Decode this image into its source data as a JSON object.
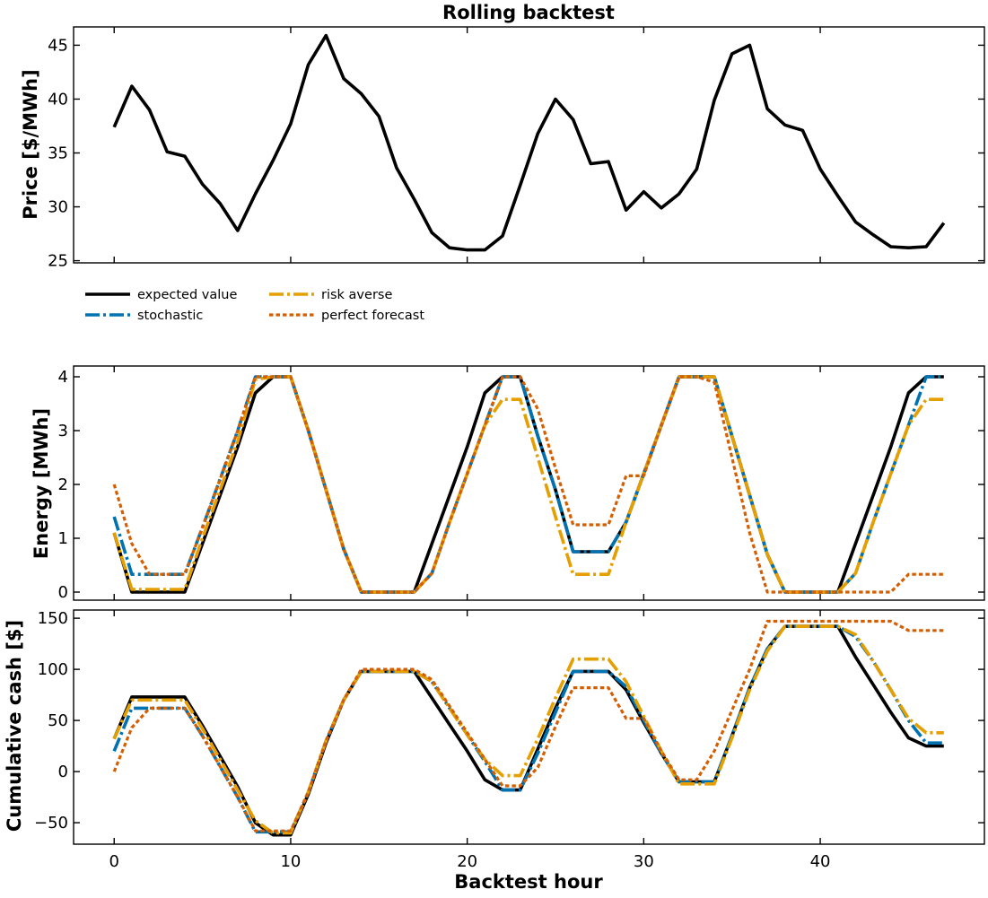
{
  "colors": {
    "expected_value": "#000000",
    "stochastic": "#0072b2",
    "risk_averse": "#e69f00",
    "perfect_forecast": "#d55e00"
  },
  "chart_data": [
    {
      "type": "line",
      "title": "Rolling backtest",
      "xlabel": "",
      "ylabel": "Price [$/MWh]",
      "xlim": [
        -2.3,
        49.3
      ],
      "ylim": [
        24.8,
        46.7
      ],
      "xticks": [
        0,
        10,
        20,
        30,
        40
      ],
      "yticks": [
        25,
        30,
        35,
        40,
        45
      ],
      "x": [
        0,
        1,
        2,
        3,
        4,
        5,
        6,
        7,
        8,
        9,
        10,
        11,
        12,
        13,
        14,
        15,
        16,
        17,
        18,
        19,
        20,
        21,
        22,
        23,
        24,
        25,
        26,
        27,
        28,
        29,
        30,
        31,
        32,
        33,
        34,
        35,
        36,
        37,
        38,
        39,
        40,
        41,
        42,
        43,
        44,
        45,
        46,
        47
      ],
      "series": [
        {
          "values": [
            37.4,
            41.2,
            39.0,
            35.1,
            34.7,
            32.1,
            30.3,
            27.8,
            31.2,
            34.3,
            37.7,
            43.2,
            45.9,
            41.9,
            40.5,
            38.4,
            33.6,
            30.7,
            27.6,
            26.2,
            26.0,
            26.0,
            27.3,
            32.0,
            36.8,
            40.0,
            38.1,
            34.0,
            34.2,
            29.7,
            31.4,
            29.9,
            31.2,
            33.5,
            39.9,
            44.2,
            45.0,
            39.1,
            37.6,
            37.1,
            33.5,
            31.0,
            28.6,
            27.4,
            26.3,
            26.2,
            26.3,
            28.5
          ],
          "color_key": "expected_value",
          "style": "solid"
        }
      ]
    },
    {
      "type": "line",
      "xlabel": "",
      "ylabel": "Energy [MWh]",
      "xlim": [
        -2.3,
        49.3
      ],
      "ylim": [
        -0.15,
        4.2
      ],
      "xticks": [
        0,
        10,
        20,
        30,
        40
      ],
      "yticks": [
        0,
        1,
        2,
        3,
        4
      ],
      "x": [
        0,
        1,
        2,
        3,
        4,
        5,
        6,
        7,
        8,
        9,
        10,
        11,
        12,
        13,
        14,
        15,
        16,
        17,
        18,
        19,
        20,
        21,
        22,
        23,
        24,
        25,
        26,
        27,
        28,
        29,
        30,
        31,
        32,
        33,
        34,
        35,
        36,
        37,
        38,
        39,
        40,
        41,
        42,
        43,
        44,
        45,
        46,
        47
      ],
      "legend": {
        "placement": "upper-left-outside",
        "entries": [
          {
            "label": "expected value",
            "color_key": "expected_value",
            "style": "solid"
          },
          {
            "label": "stochastic",
            "color_key": "stochastic",
            "style": "dashdot"
          },
          {
            "label": "risk averse",
            "color_key": "risk_averse",
            "style": "dashdot"
          },
          {
            "label": "perfect forecast",
            "color_key": "perfect_forecast",
            "style": "dotted"
          }
        ]
      },
      "series": [
        {
          "name": "expected value",
          "color_key": "expected_value",
          "style": "solid",
          "values": [
            1.1,
            0.0,
            0.0,
            0.0,
            0.0,
            0.9,
            1.8,
            2.7,
            3.7,
            4.0,
            4.0,
            3.0,
            1.9,
            0.8,
            0.0,
            0.0,
            0.0,
            0.0,
            0.9,
            1.8,
            2.7,
            3.7,
            4.0,
            4.0,
            2.9,
            1.9,
            0.75,
            0.75,
            0.75,
            1.3,
            2.2,
            3.1,
            4.0,
            4.0,
            4.0,
            2.9,
            1.8,
            0.7,
            0.0,
            0.0,
            0.0,
            0.0,
            0.9,
            1.8,
            2.7,
            3.7,
            4.0,
            4.0
          ]
        },
        {
          "name": "stochastic",
          "color_key": "stochastic",
          "style": "dashdot",
          "values": [
            1.4,
            0.33,
            0.33,
            0.33,
            0.33,
            1.2,
            2.1,
            3.0,
            4.0,
            4.0,
            4.0,
            3.0,
            1.9,
            0.8,
            0.0,
            0.0,
            0.0,
            0.0,
            0.35,
            1.3,
            2.2,
            3.1,
            4.0,
            4.0,
            2.9,
            1.9,
            0.75,
            0.75,
            0.75,
            1.3,
            2.2,
            3.1,
            4.0,
            4.0,
            4.0,
            2.9,
            1.8,
            0.7,
            0.0,
            0.0,
            0.0,
            0.0,
            0.35,
            1.3,
            2.2,
            3.1,
            4.0,
            4.0
          ]
        },
        {
          "name": "risk averse",
          "color_key": "risk_averse",
          "style": "dashdot",
          "values": [
            1.1,
            0.05,
            0.05,
            0.05,
            0.05,
            1.0,
            1.9,
            2.8,
            3.95,
            4.0,
            4.0,
            3.0,
            1.9,
            0.8,
            0.0,
            0.0,
            0.0,
            0.0,
            0.35,
            1.3,
            2.2,
            3.1,
            3.58,
            3.58,
            2.5,
            1.4,
            0.33,
            0.33,
            0.33,
            1.3,
            2.2,
            3.1,
            4.0,
            4.0,
            4.0,
            2.9,
            1.8,
            0.7,
            0.0,
            0.0,
            0.0,
            0.0,
            0.35,
            1.3,
            2.2,
            3.1,
            3.58,
            3.58
          ]
        },
        {
          "name": "perfect forecast",
          "color_key": "perfect_forecast",
          "style": "dotted",
          "values": [
            2.0,
            0.9,
            0.33,
            0.33,
            0.33,
            1.2,
            2.1,
            3.0,
            4.0,
            4.0,
            4.0,
            3.0,
            1.9,
            0.8,
            0.0,
            0.0,
            0.0,
            0.0,
            0.35,
            1.3,
            2.2,
            3.1,
            4.0,
            4.0,
            3.4,
            2.3,
            1.25,
            1.25,
            1.25,
            2.16,
            2.16,
            3.1,
            4.0,
            4.0,
            3.9,
            2.5,
            1.1,
            0.0,
            0.0,
            0.0,
            0.0,
            0.0,
            0.0,
            0.0,
            0.0,
            0.33,
            0.33,
            0.33
          ]
        }
      ]
    },
    {
      "type": "line",
      "xlabel": "Backtest hour",
      "ylabel": "Cumulative cash [$]",
      "xlim": [
        -2.3,
        49.3
      ],
      "ylim": [
        -71,
        158
      ],
      "xticks": [
        0,
        10,
        20,
        30,
        40
      ],
      "yticks": [
        -50,
        0,
        50,
        100,
        150
      ],
      "x": [
        0,
        1,
        2,
        3,
        4,
        5,
        6,
        7,
        8,
        9,
        10,
        11,
        12,
        13,
        14,
        15,
        16,
        17,
        18,
        19,
        20,
        21,
        22,
        23,
        24,
        25,
        26,
        27,
        28,
        29,
        30,
        31,
        32,
        33,
        34,
        35,
        36,
        37,
        38,
        39,
        40,
        41,
        42,
        43,
        44,
        45,
        46,
        47
      ],
      "series": [
        {
          "name": "expected value",
          "color_key": "expected_value",
          "style": "solid",
          "values": [
            32,
            73,
            73,
            73,
            73,
            45,
            15,
            -15,
            -50,
            -62,
            -62,
            -22,
            28,
            70,
            98,
            98,
            98,
            98,
            72,
            46,
            20,
            -8,
            -18,
            -18,
            22,
            62,
            98,
            98,
            98,
            80,
            48,
            18,
            -10,
            -10,
            -10,
            35,
            82,
            120,
            142,
            142,
            142,
            142,
            112,
            85,
            58,
            33,
            25,
            25
          ]
        },
        {
          "name": "stochastic",
          "color_key": "stochastic",
          "style": "dashdot",
          "values": [
            20,
            62,
            62,
            62,
            62,
            35,
            5,
            -25,
            -59,
            -59,
            -59,
            -20,
            30,
            70,
            98,
            98,
            98,
            98,
            88,
            62,
            36,
            10,
            -18,
            -18,
            18,
            58,
            98,
            98,
            98,
            83,
            50,
            18,
            -10,
            -10,
            -10,
            35,
            82,
            120,
            142,
            142,
            142,
            142,
            132,
            108,
            80,
            50,
            28,
            28
          ]
        },
        {
          "name": "risk averse",
          "color_key": "risk_averse",
          "style": "dashdot",
          "values": [
            32,
            70,
            70,
            70,
            70,
            42,
            12,
            -18,
            -48,
            -60,
            -60,
            -20,
            30,
            70,
            98,
            98,
            98,
            98,
            88,
            62,
            36,
            12,
            -4,
            -4,
            32,
            72,
            110,
            110,
            110,
            88,
            54,
            20,
            -12,
            -12,
            -12,
            33,
            80,
            118,
            142,
            142,
            142,
            142,
            134,
            108,
            80,
            52,
            38,
            38
          ]
        },
        {
          "name": "perfect forecast",
          "color_key": "perfect_forecast",
          "style": "dotted",
          "values": [
            0,
            43,
            62,
            62,
            62,
            35,
            5,
            -25,
            -58,
            -58,
            -58,
            -20,
            30,
            70,
            100,
            100,
            100,
            100,
            90,
            64,
            38,
            12,
            -14,
            -14,
            4,
            44,
            82,
            82,
            82,
            52,
            52,
            20,
            -8,
            -8,
            20,
            60,
            100,
            147,
            147,
            147,
            147,
            147,
            147,
            147,
            147,
            138,
            138,
            138
          ]
        }
      ]
    }
  ]
}
